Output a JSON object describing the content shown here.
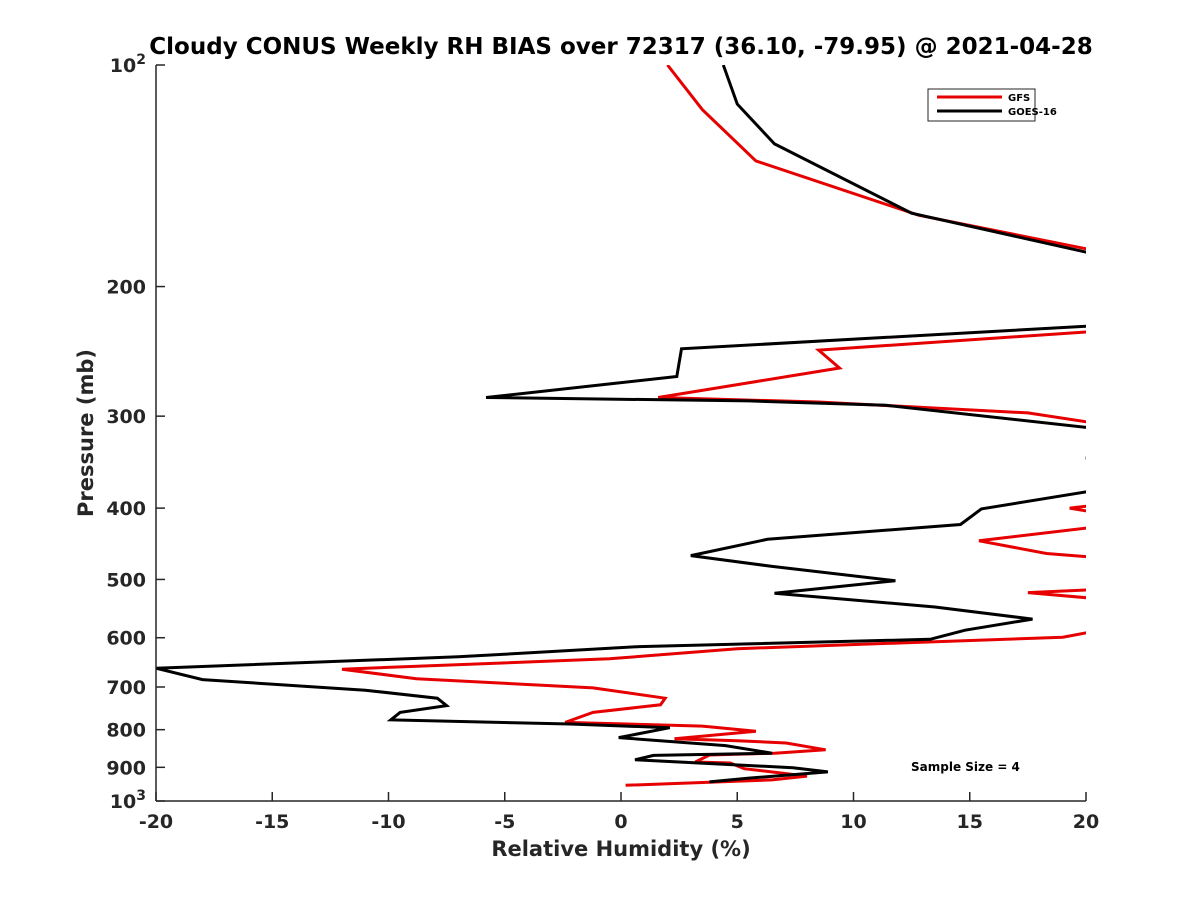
{
  "chart_data": {
    "type": "line",
    "title": "Cloudy CONUS Weekly RH BIAS over 72317 (36.10, -79.95) @ 2021-04-28",
    "xlabel": "Relative Humidity (%)",
    "ylabel": "Pressure (mb)",
    "xlim": [
      -20,
      20
    ],
    "ylim": [
      100,
      1000
    ],
    "y_scale": "log",
    "y_reversed": true,
    "grid": false,
    "legend_position": "top-right",
    "x_ticks": [
      "-20",
      "-15",
      "-10",
      "-5",
      "0",
      "5",
      "10",
      "15",
      "20"
    ],
    "y_ticks": [
      {
        "value": 100,
        "base": "10",
        "exp": "2"
      },
      {
        "value": 200,
        "label": "200"
      },
      {
        "value": 300,
        "label": "300"
      },
      {
        "value": 400,
        "label": "400"
      },
      {
        "value": 500,
        "label": "500"
      },
      {
        "value": 600,
        "label": "600"
      },
      {
        "value": 700,
        "label": "700"
      },
      {
        "value": 800,
        "label": "800"
      },
      {
        "value": 900,
        "label": "900"
      },
      {
        "value": 1000,
        "base": "10",
        "exp": "3"
      }
    ],
    "annotation": "Sample Size = 4",
    "series": [
      {
        "name": "GFS",
        "color": "#e60000",
        "segments": [
          [
            [
              2.0,
              100
            ],
            [
              3.5,
              115
            ],
            [
              5.8,
              135
            ],
            [
              12.8,
              160
            ],
            [
              20.5,
              179
            ]
          ],
          [
            [
              20.5,
              230
            ],
            [
              8.5,
              244
            ],
            [
              9.4,
              258
            ],
            [
              1.6,
              283
            ],
            [
              8.5,
              287
            ],
            [
              17.5,
              297
            ],
            [
              20.5,
              307
            ]
          ],
          [
            [
              20.5,
              396
            ],
            [
              19.3,
              400
            ],
            [
              20.5,
              406
            ]
          ],
          [
            [
              20.5,
              424
            ],
            [
              15.4,
              443
            ],
            [
              18.3,
              461
            ],
            [
              20.5,
              467
            ]
          ],
          [
            [
              20.5,
              516
            ],
            [
              17.5,
              521
            ],
            [
              20.5,
              531
            ]
          ],
          [
            [
              20.5,
              587
            ],
            [
              19.0,
              599
            ],
            [
              5.0,
              621
            ],
            [
              -0.5,
              641
            ],
            [
              -12.0,
              662
            ],
            [
              -8.8,
              682
            ],
            [
              -1.2,
              702
            ],
            [
              1.9,
              725
            ],
            [
              1.7,
              740
            ],
            [
              -1.2,
              758
            ],
            [
              -2.4,
              782
            ],
            [
              3.5,
              791
            ],
            [
              5.8,
              804
            ],
            [
              2.3,
              823
            ],
            [
              5.0,
              828
            ],
            [
              7.1,
              834
            ],
            [
              8.8,
              852
            ],
            [
              6.6,
              861
            ],
            [
              3.8,
              866
            ],
            [
              3.2,
              885
            ],
            [
              4.7,
              888
            ],
            [
              5.3,
              904
            ],
            [
              8.0,
              925
            ],
            [
              6.5,
              936
            ],
            [
              0.2,
              952
            ]
          ]
        ]
      },
      {
        "name": "GOES-16",
        "color": "#000000",
        "segments": [
          [
            [
              4.4,
              100
            ],
            [
              5.0,
              113
            ],
            [
              6.6,
              128
            ],
            [
              12.5,
              159
            ],
            [
              20.5,
              181
            ]
          ],
          [
            [
              20.5,
              226
            ],
            [
              2.6,
              243
            ],
            [
              2.4,
              265
            ],
            [
              -5.8,
              283
            ],
            [
              5.5,
              286
            ],
            [
              11.4,
              290
            ],
            [
              20.5,
              312
            ]
          ],
          [
            [
              20.5,
              339
            ],
            [
              20.0,
              342
            ],
            [
              20.5,
              345
            ]
          ],
          [
            [
              20.5,
              378
            ],
            [
              15.5,
              401
            ],
            [
              14.6,
              421
            ],
            [
              6.3,
              441
            ],
            [
              3.0,
              464
            ],
            [
              6.5,
              480
            ],
            [
              11.8,
              502
            ],
            [
              6.6,
              522
            ],
            [
              13.5,
              545
            ],
            [
              17.7,
              566
            ],
            [
              14.8,
              586
            ],
            [
              13.3,
              603
            ],
            [
              0.8,
              617
            ],
            [
              -7.0,
              637
            ],
            [
              -20.0,
              660
            ],
            [
              -18.0,
              684
            ],
            [
              -11.0,
              707
            ],
            [
              -7.9,
              725
            ],
            [
              -7.5,
              742
            ],
            [
              -9.5,
              758
            ],
            [
              -9.9,
              776
            ],
            [
              -2.2,
              786
            ],
            [
              2.1,
              795
            ],
            [
              -0.1,
              820
            ],
            [
              4.5,
              841
            ],
            [
              6.5,
              861
            ],
            [
              1.4,
              867
            ],
            [
              0.6,
              879
            ],
            [
              7.4,
              901
            ],
            [
              8.9,
              913
            ],
            [
              5.5,
              931
            ],
            [
              3.8,
              942
            ]
          ]
        ]
      }
    ]
  }
}
